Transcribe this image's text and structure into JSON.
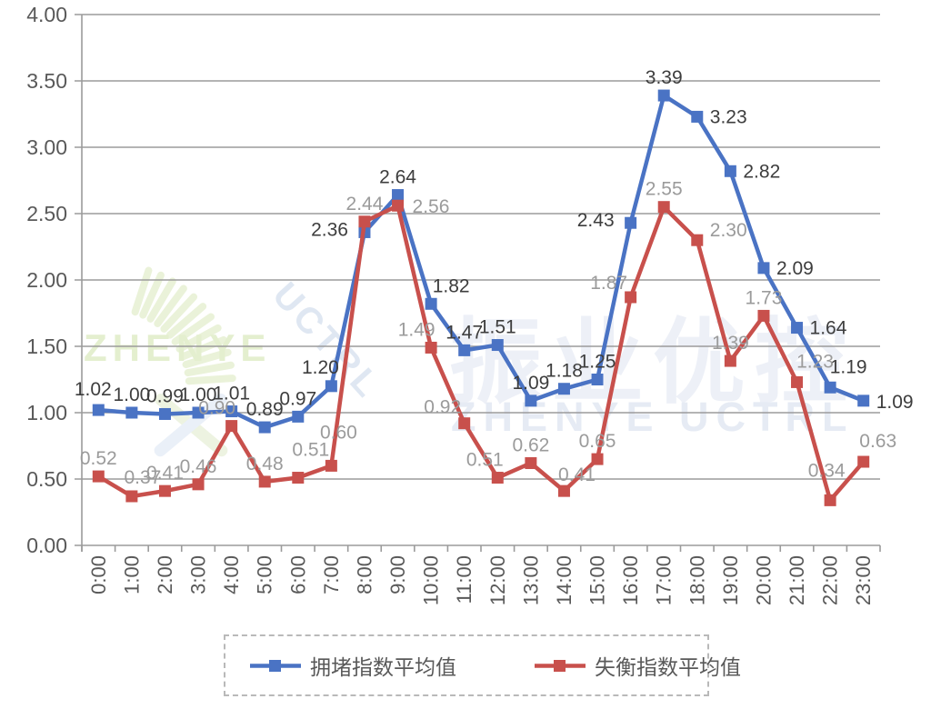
{
  "chart_data": {
    "type": "line",
    "title": "",
    "categories": [
      "0:00",
      "1:00",
      "2:00",
      "3:00",
      "4:00",
      "5:00",
      "6:00",
      "7:00",
      "8:00",
      "9:00",
      "10:00",
      "11:00",
      "12:00",
      "13:00",
      "14:00",
      "15:00",
      "16:00",
      "17:00",
      "18:00",
      "19:00",
      "20:00",
      "21:00",
      "22:00",
      "23:00"
    ],
    "y_ticks": [
      "0.00",
      "0.50",
      "1.00",
      "1.50",
      "2.00",
      "2.50",
      "3.00",
      "3.50",
      "4.00"
    ],
    "ylim": [
      0,
      4
    ],
    "grid": true,
    "legend_position": "bottom",
    "series": [
      {
        "name": "拥堵指数平均值",
        "color": "#4a73c4",
        "label_color": "#3d3d3d",
        "marker": "square",
        "values": [
          1.02,
          1.0,
          0.99,
          1.0,
          1.01,
          0.89,
          0.97,
          1.2,
          2.36,
          2.64,
          1.82,
          1.47,
          1.51,
          1.09,
          1.18,
          1.25,
          2.43,
          3.39,
          3.23,
          2.82,
          2.09,
          1.64,
          1.19,
          1.09
        ],
        "labels": [
          "1.02",
          "1.00",
          "0.99",
          "1.00",
          "1.01",
          "0.89",
          "0.97",
          "1.20",
          "2.36",
          "2.64",
          "1.82",
          "1.47",
          "1.51",
          "1.09",
          "1.18",
          "1.25",
          "2.43",
          "3.39",
          "3.23",
          "2.82",
          "2.09",
          "1.64",
          "1.19",
          "1.09"
        ]
      },
      {
        "name": "失衡指数平均值",
        "color": "#c8504c",
        "label_color": "#9b9b9b",
        "marker": "square",
        "values": [
          0.52,
          0.37,
          0.41,
          0.46,
          0.9,
          0.48,
          0.51,
          0.6,
          2.44,
          2.56,
          1.49,
          0.92,
          0.51,
          0.62,
          0.41,
          0.65,
          1.87,
          2.55,
          2.3,
          1.39,
          1.73,
          1.23,
          0.34,
          0.63
        ],
        "labels": [
          "0.52",
          "0.37",
          "0.41",
          "0.46",
          "0.90",
          "0.48",
          "0.51",
          "0.60",
          "2.44",
          "2.56",
          "1.49",
          "0.92",
          "0.51",
          "0.62",
          "0.41",
          "0.65",
          "1.87",
          "2.55",
          "2.30",
          "1.39",
          "1.73",
          "1.23",
          "0.34",
          "0.63"
        ]
      }
    ]
  },
  "watermark": {
    "brand_left": "ZHENYE",
    "diagonal_text": "UCTRL",
    "brand_cn": "振业优控",
    "brand_en": "ZHENYE UCTRL"
  },
  "axis": {
    "grid_color": "#9b9b9b",
    "tick_label_color": "#595959"
  }
}
